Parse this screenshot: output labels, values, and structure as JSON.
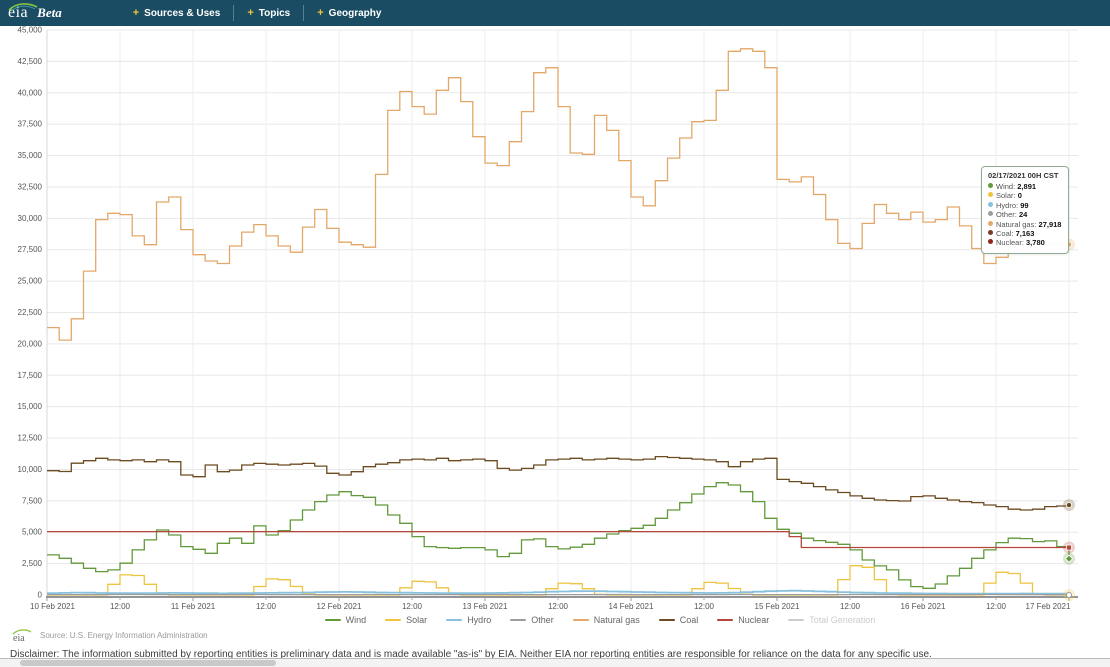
{
  "header": {
    "logo_text": "eia",
    "beta_label": "Beta",
    "bg_color": "#1a4d63",
    "plus_color": "#f2c33c",
    "nav": [
      {
        "label": "Sources & Uses"
      },
      {
        "label": "Topics"
      },
      {
        "label": "Geography"
      }
    ]
  },
  "chart_data": {
    "type": "line",
    "step": true,
    "title": "",
    "xlabel": "",
    "ylabel": "",
    "ylim": [
      0,
      45000
    ],
    "y_tick_interval": 2500,
    "y_tick_labels": [
      "0",
      "2,500",
      "5,000",
      "7,500",
      "10,000",
      "12,500",
      "15,000",
      "17,500",
      "20,000",
      "22,500",
      "25,000",
      "27,500",
      "30,000",
      "32,500",
      "35,000",
      "37,500",
      "40,000",
      "42,500",
      "45,000"
    ],
    "x_total_hours": 168,
    "sample_interval_hours": 2,
    "x_major_labels": [
      "10 Feb 2021",
      "11 Feb 2021",
      "12 Feb 2021",
      "13 Feb 2021",
      "14 Feb 2021",
      "15 Feb 2021",
      "16 Feb 2021",
      "17 Feb 2021"
    ],
    "x_minor_label": "12:00",
    "grid": true,
    "legend_position": "bottom",
    "series": [
      {
        "name": "Wind",
        "color": "#61993b",
        "disabled": false,
        "values": [
          3190,
          2925,
          2530,
          2130,
          1865,
          2000,
          2530,
          3590,
          4385,
          5180,
          4780,
          3855,
          3640,
          3325,
          4120,
          4520,
          4120,
          5500,
          4780,
          5130,
          5975,
          6770,
          7435,
          7965,
          8230,
          7915,
          7780,
          7170,
          6375,
          5710,
          4650,
          3855,
          3775,
          3720,
          3775,
          3775,
          3590,
          3055,
          3325,
          4385,
          4465,
          3855,
          3670,
          3805,
          4040,
          4520,
          4860,
          5130,
          5310,
          5550,
          6110,
          6770,
          7355,
          8045,
          8630,
          8945,
          8760,
          8230,
          7435,
          6110,
          5235,
          4915,
          4520,
          4330,
          4200,
          4040,
          3590,
          2790,
          2315,
          2000,
          1200,
          670,
          535,
          880,
          1520,
          2130,
          2925,
          3590,
          4170,
          4520,
          4490,
          4250,
          4305,
          3855,
          2891
        ]
      },
      {
        "name": "Solar",
        "color": "#eec33f",
        "disabled": false,
        "values": [
          0,
          0,
          0,
          0,
          0,
          850,
          1600,
          1550,
          850,
          100,
          0,
          0,
          0,
          0,
          0,
          0,
          0,
          680,
          1280,
          1220,
          675,
          70,
          0,
          0,
          0,
          0,
          0,
          0,
          0,
          575,
          1090,
          1040,
          575,
          60,
          0,
          0,
          0,
          0,
          0,
          0,
          0,
          500,
          950,
          900,
          500,
          50,
          0,
          0,
          0,
          0,
          0,
          0,
          0,
          500,
          1000,
          950,
          520,
          55,
          0,
          0,
          0,
          0,
          0,
          0,
          0,
          1225,
          2330,
          2205,
          1225,
          125,
          0,
          0,
          0,
          0,
          0,
          0,
          0,
          950,
          1805,
          1710,
          950,
          95,
          0,
          0,
          0
        ]
      },
      {
        "name": "Hydro",
        "color": "#88c1dd",
        "disabled": false,
        "values": [
          150,
          170,
          190,
          180,
          160,
          150,
          140,
          140,
          150,
          160,
          170,
          160,
          150,
          140,
          130,
          140,
          150,
          160,
          170,
          180,
          190,
          200,
          220,
          240,
          250,
          240,
          220,
          200,
          190,
          180,
          170,
          160,
          150,
          150,
          140,
          150,
          160,
          170,
          180,
          200,
          230,
          260,
          280,
          300,
          310,
          300,
          280,
          260,
          240,
          220,
          200,
          190,
          180,
          170,
          160,
          170,
          190,
          220,
          260,
          300,
          330,
          340,
          320,
          290,
          260,
          230,
          200,
          180,
          160,
          150,
          140,
          130,
          120,
          120,
          110,
          110,
          100,
          100,
          100,
          110,
          120,
          110,
          100,
          100,
          99
        ]
      },
      {
        "name": "Other",
        "color": "#9d9d9d",
        "disabled": false,
        "values": [
          30,
          30,
          30,
          35,
          35,
          40,
          40,
          40,
          35,
          35,
          30,
          30,
          30,
          30,
          35,
          35,
          40,
          40,
          35,
          35,
          30,
          30,
          30,
          30,
          35,
          35,
          40,
          40,
          35,
          35,
          30,
          30,
          30,
          30,
          35,
          35,
          40,
          40,
          35,
          35,
          30,
          30,
          30,
          30,
          35,
          35,
          40,
          40,
          35,
          35,
          30,
          30,
          30,
          30,
          35,
          35,
          40,
          40,
          35,
          35,
          30,
          30,
          30,
          30,
          35,
          35,
          40,
          40,
          35,
          35,
          30,
          30,
          30,
          30,
          35,
          35,
          40,
          40,
          35,
          35,
          30,
          28,
          26,
          25,
          24
        ]
      },
      {
        "name": "Natural gas",
        "color": "#e3a869",
        "disabled": false,
        "values": [
          21300,
          20300,
          22000,
          25800,
          29900,
          30400,
          30300,
          28600,
          27900,
          31300,
          31700,
          29100,
          27100,
          26600,
          26400,
          27800,
          28900,
          29500,
          28600,
          27800,
          27300,
          29300,
          30700,
          29200,
          28100,
          27900,
          27700,
          33500,
          38600,
          40100,
          38900,
          38300,
          40200,
          41200,
          39300,
          36500,
          34400,
          34200,
          36100,
          38500,
          41600,
          42000,
          38900,
          35200,
          35100,
          38200,
          37000,
          34600,
          31700,
          31000,
          33000,
          34800,
          36400,
          37700,
          37800,
          40200,
          43300,
          43500,
          43300,
          42000,
          33100,
          32900,
          33300,
          31900,
          29900,
          28000,
          27600,
          29600,
          31100,
          30400,
          29900,
          30500,
          29700,
          29900,
          30900,
          29400,
          27600,
          26400,
          26900,
          27800,
          28300,
          28100,
          27900,
          27900,
          27918
        ]
      },
      {
        "name": "Coal",
        "color": "#6d4b21",
        "disabled": false,
        "values": [
          9900,
          9840,
          10500,
          10700,
          10890,
          10760,
          10700,
          10760,
          10620,
          10760,
          10620,
          9560,
          9420,
          10350,
          9820,
          9950,
          10350,
          10480,
          10420,
          10350,
          10420,
          10480,
          10270,
          9690,
          9560,
          9820,
          10220,
          10420,
          10540,
          10760,
          10820,
          10760,
          10890,
          10700,
          10760,
          10820,
          10700,
          10080,
          9950,
          10080,
          10350,
          10760,
          10820,
          10890,
          10760,
          10820,
          10890,
          10820,
          10760,
          10820,
          11020,
          10950,
          10890,
          10820,
          10760,
          10620,
          10220,
          10620,
          10820,
          10890,
          9210,
          9030,
          8900,
          8630,
          8370,
          8160,
          7890,
          7700,
          7570,
          7520,
          7490,
          7840,
          7890,
          7700,
          7570,
          7440,
          7360,
          7170,
          7040,
          6830,
          6770,
          6830,
          7040,
          7090,
          7163
        ]
      },
      {
        "name": "Nuclear",
        "color": "#b5463c",
        "disabled": false,
        "values": [
          5050,
          5050,
          5050,
          5050,
          5050,
          5050,
          5050,
          5050,
          5050,
          5050,
          5050,
          5050,
          5050,
          5050,
          5050,
          5050,
          5050,
          5050,
          5050,
          5050,
          5050,
          5050,
          5050,
          5050,
          5050,
          5050,
          5050,
          5050,
          5050,
          5050,
          5050,
          5050,
          5050,
          5050,
          5050,
          5050,
          5050,
          5050,
          5050,
          5050,
          5050,
          5050,
          5050,
          5050,
          5050,
          5050,
          5050,
          5050,
          5050,
          5050,
          5050,
          5050,
          5050,
          5050,
          5050,
          5050,
          5050,
          5050,
          5050,
          5050,
          5050,
          4650,
          3780,
          3780,
          3780,
          3780,
          3780,
          3780,
          3780,
          3780,
          3780,
          3780,
          3780,
          3780,
          3780,
          3780,
          3780,
          3780,
          3780,
          3780,
          3780,
          3780,
          3780,
          3780,
          3780
        ]
      },
      {
        "name": "Total Generation",
        "color": "#cccccc",
        "disabled": true,
        "values": []
      }
    ],
    "end_markers": [
      {
        "series": "Natural gas",
        "shape": "circle"
      },
      {
        "series": "Coal",
        "shape": "circle"
      },
      {
        "series": "Nuclear",
        "shape": "square"
      },
      {
        "series": "Wind",
        "shape": "diamond"
      },
      {
        "series": "Solar",
        "shape": "open-circle"
      }
    ]
  },
  "tooltip": {
    "title": "02/17/2021 00H CST",
    "rows": [
      {
        "label": "Wind",
        "value": "2,891",
        "color": "#61993b"
      },
      {
        "label": "Solar",
        "value": "0",
        "color": "#eec33f"
      },
      {
        "label": "Hydro",
        "value": "99",
        "color": "#88c1dd"
      },
      {
        "label": "Other",
        "value": "24",
        "color": "#9d9d9d"
      },
      {
        "label": "Natural gas",
        "value": "27,918",
        "color": "#e3a869"
      },
      {
        "label": "Coal",
        "value": "7,163",
        "color": "#7a3b26"
      },
      {
        "label": "Nuclear",
        "value": "3,780",
        "color": "#8f241a"
      }
    ]
  },
  "footer": {
    "logo_text": "eia",
    "source_text": "Source: U.S. Energy Information Administration"
  },
  "disclaimer": "Disclaimer: The information submitted by reporting entities is preliminary data and is made available \"as-is\" by EIA. Neither EIA nor reporting entities are responsible for reliance on the data for any specific use."
}
